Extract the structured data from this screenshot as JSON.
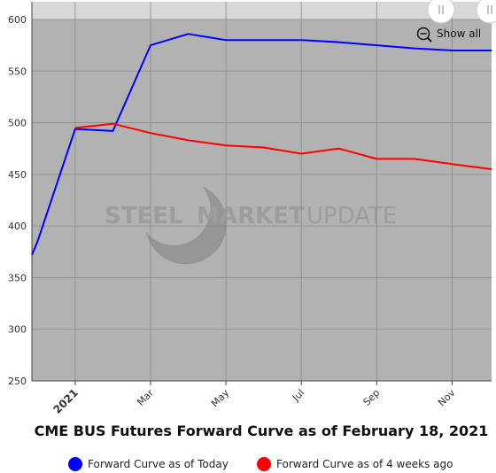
{
  "chart_data": {
    "type": "line",
    "title": "CME BUS Futures Forward Curve as of February 18, 2021",
    "xlabel": "",
    "ylabel": "",
    "ylim": [
      250,
      600
    ],
    "yticks": [
      250,
      300,
      350,
      400,
      450,
      500,
      550,
      600
    ],
    "x_tick_labels": [
      {
        "label": "2021",
        "month_index": 1,
        "bold": true
      },
      {
        "label": "Mar",
        "month_index": 3,
        "bold": false
      },
      {
        "label": "May",
        "month_index": 5,
        "bold": false
      },
      {
        "label": "Jul",
        "month_index": 7,
        "bold": false
      },
      {
        "label": "Sep",
        "month_index": 9,
        "bold": false
      },
      {
        "label": "Nov",
        "month_index": 11,
        "bold": false
      }
    ],
    "x_range": [
      -0.15,
      12.05
    ],
    "grid": true,
    "legend_position": "bottom",
    "series": [
      {
        "name": "Forward Curve as of Today",
        "color": "#0000ff",
        "points": [
          {
            "x": -0.15,
            "y": 372
          },
          {
            "x": 0.0,
            "y": 385
          },
          {
            "x": 1.0,
            "y": 494
          },
          {
            "x": 2.0,
            "y": 492
          },
          {
            "x": 3.0,
            "y": 575
          },
          {
            "x": 4.0,
            "y": 586
          },
          {
            "x": 5.0,
            "y": 580
          },
          {
            "x": 6.0,
            "y": 580
          },
          {
            "x": 7.0,
            "y": 580
          },
          {
            "x": 8.0,
            "y": 578
          },
          {
            "x": 9.0,
            "y": 575
          },
          {
            "x": 10.0,
            "y": 572
          },
          {
            "x": 11.0,
            "y": 570
          },
          {
            "x": 12.05,
            "y": 570
          }
        ]
      },
      {
        "name": "Forward Curve as of 4 weeks ago",
        "color": "#ff0000",
        "points": [
          {
            "x": 1.0,
            "y": 495
          },
          {
            "x": 2.0,
            "y": 499
          },
          {
            "x": 3.0,
            "y": 490
          },
          {
            "x": 4.0,
            "y": 483
          },
          {
            "x": 5.0,
            "y": 478
          },
          {
            "x": 6.0,
            "y": 476
          },
          {
            "x": 7.0,
            "y": 470
          },
          {
            "x": 8.0,
            "y": 475
          },
          {
            "x": 9.0,
            "y": 465
          },
          {
            "x": 10.0,
            "y": 465
          },
          {
            "x": 11.0,
            "y": 460
          },
          {
            "x": 12.05,
            "y": 455
          }
        ]
      }
    ]
  },
  "controls": {
    "reset_label": "Show all",
    "icon": "zoom-out-icon"
  },
  "watermark": {
    "word1": "STEEL",
    "word2": "MARKET",
    "word3": "UPDATE",
    "icon": "swoosh-logo-icon"
  }
}
